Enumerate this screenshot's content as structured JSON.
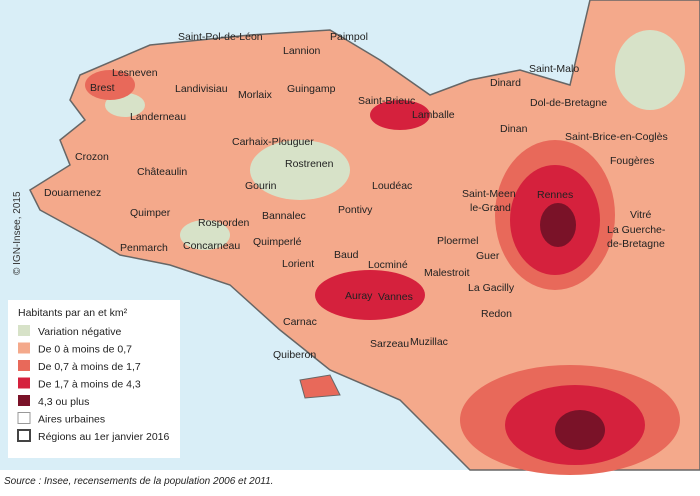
{
  "map": {
    "places": [
      {
        "label": "Saint-Pol-de-Léon"
      },
      {
        "label": "Paimpol"
      },
      {
        "label": "Lannion"
      },
      {
        "label": "Saint-Malo"
      },
      {
        "label": "Dinard"
      },
      {
        "label": "Lesneven"
      },
      {
        "label": "Brest"
      },
      {
        "label": "Landivisiau"
      },
      {
        "label": "Morlaix"
      },
      {
        "label": "Guingamp"
      },
      {
        "label": "Saint-Brieuc"
      },
      {
        "label": "Dol-de-Bretagne"
      },
      {
        "label": "Landerneau"
      },
      {
        "label": "Lamballe"
      },
      {
        "label": "Dinan"
      },
      {
        "label": "Saint-Brice-en-Coglès"
      },
      {
        "label": "Carhaix-Plouguer"
      },
      {
        "label": "Crozon"
      },
      {
        "label": "Rostrenen"
      },
      {
        "label": "Fougères"
      },
      {
        "label": "Châteaulin"
      },
      {
        "label": "Loudéac"
      },
      {
        "label": "Gourin"
      },
      {
        "label": "Saint-Meen"
      },
      {
        "label": "le-Grand"
      },
      {
        "label": "Rennes"
      },
      {
        "label": "Douarnenez"
      },
      {
        "label": "Pontivy"
      },
      {
        "label": "Vitré"
      },
      {
        "label": "Quimper"
      },
      {
        "label": "Rosporden"
      },
      {
        "label": "Bannalec"
      },
      {
        "label": "La Guerche-"
      },
      {
        "label": "de-Bretagne"
      },
      {
        "label": "Ploermel"
      },
      {
        "label": "Concarneau"
      },
      {
        "label": "Quimperlé"
      },
      {
        "label": "Penmarch"
      },
      {
        "label": "Baud"
      },
      {
        "label": "Guer"
      },
      {
        "label": "Lorient"
      },
      {
        "label": "Locminé"
      },
      {
        "label": "Malestroit"
      },
      {
        "label": "La Gacilly"
      },
      {
        "label": "Auray"
      },
      {
        "label": "Vannes"
      },
      {
        "label": "Carnac"
      },
      {
        "label": "Redon"
      },
      {
        "label": "Muzillac"
      },
      {
        "label": "Sarzeau"
      },
      {
        "label": "Quiberon"
      }
    ]
  },
  "legend": {
    "title": "Habitants par an et km²",
    "items": [
      {
        "label": "Variation négative"
      },
      {
        "label": "De 0 à moins de 0,7"
      },
      {
        "label": "De 0,7 à moins de 1,7"
      },
      {
        "label": "De 1,7 à moins de 4,3"
      },
      {
        "label": "4,3 ou plus"
      },
      {
        "label": "Aires urbaines"
      },
      {
        "label": "Régions au 1er janvier 2016"
      }
    ]
  },
  "copyright": "© IGN-Insee, 2015",
  "source": "Source : Insee, recensements de la population 2006 et 2011."
}
